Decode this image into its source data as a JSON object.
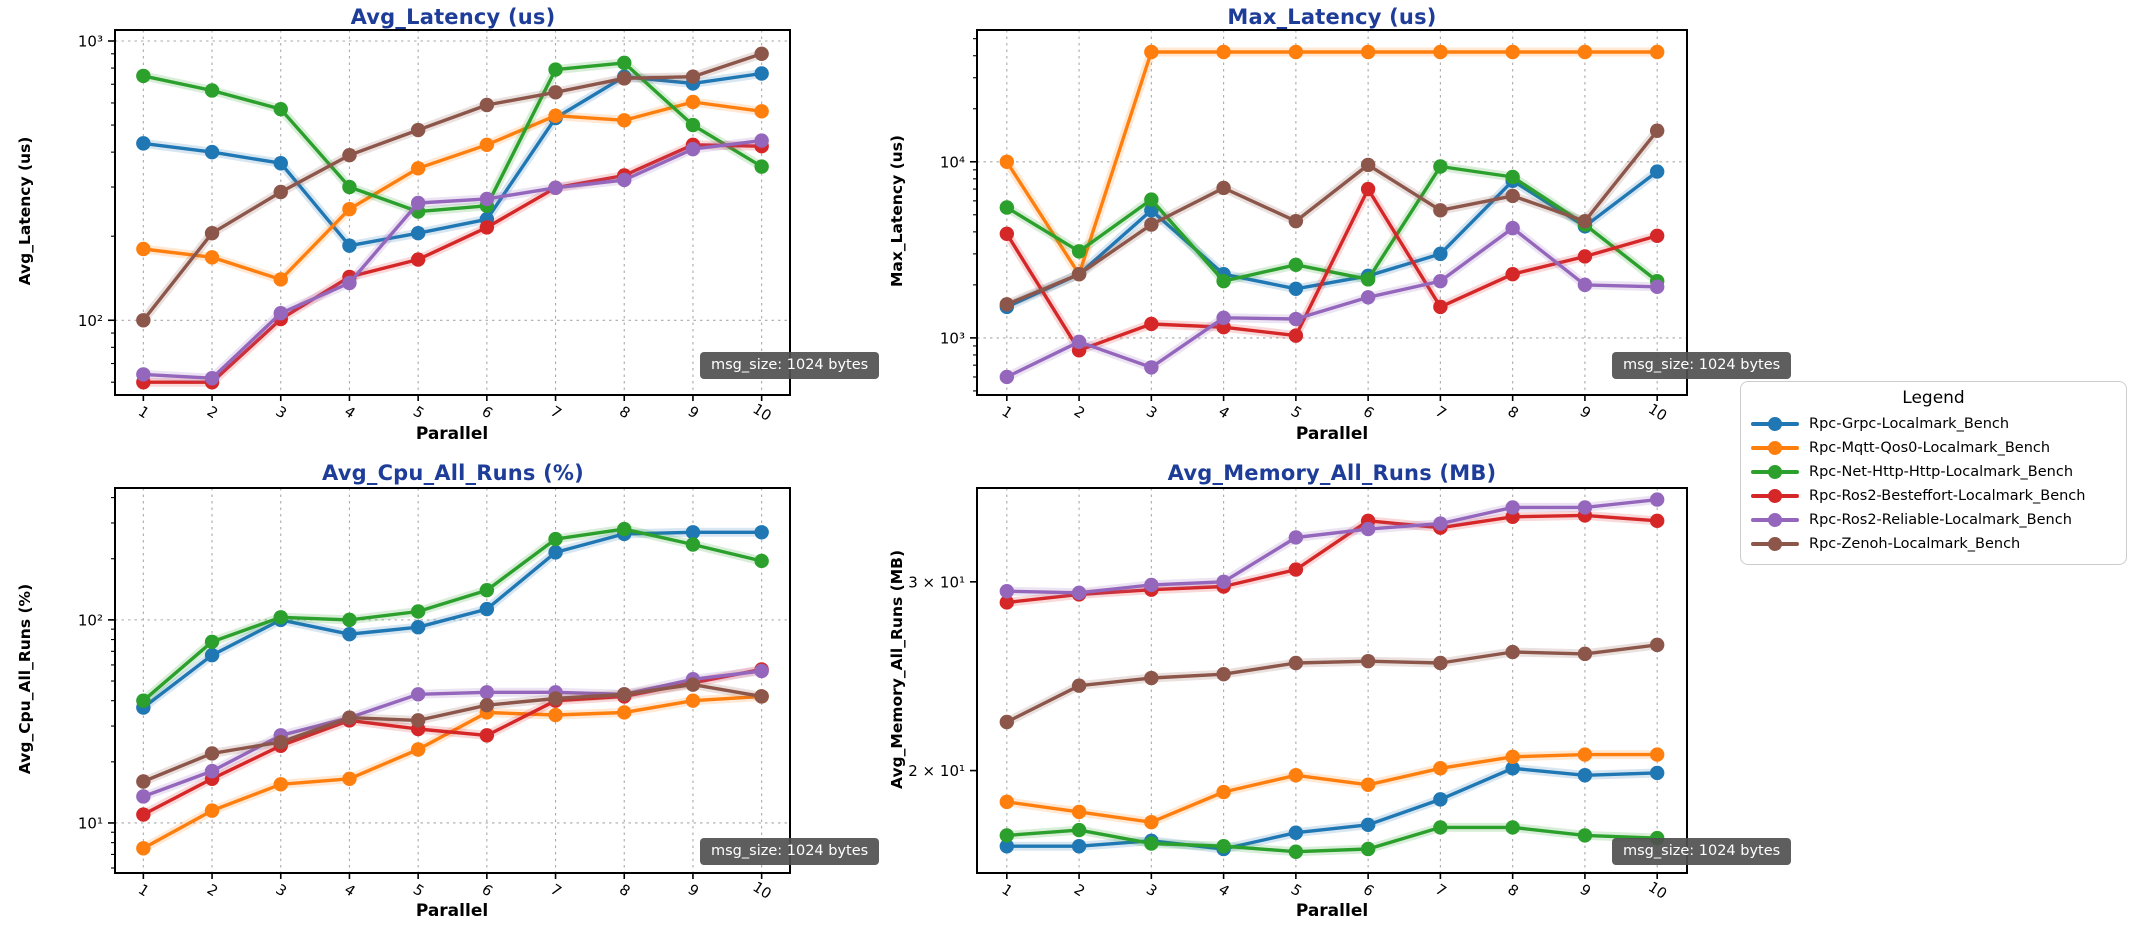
{
  "figure": {
    "background": "#ffffff",
    "title_color": "#1e3d99",
    "grid_color": "#aaaaaa",
    "spine_color": "#000000"
  },
  "annotation": {
    "label": "msg_size: 1024 bytes"
  },
  "legend": {
    "title": "Legend",
    "entries": [
      {
        "label": "Rpc-Grpc-Localmark_Bench",
        "color": "#1f77b4"
      },
      {
        "label": "Rpc-Mqtt-Qos0-Localmark_Bench",
        "color": "#ff7f0e"
      },
      {
        "label": "Rpc-Net-Http-Http-Localmark_Bench",
        "color": "#2ca02c"
      },
      {
        "label": "Rpc-Ros2-Besteffort-Localmark_Bench",
        "color": "#d62728"
      },
      {
        "label": "Rpc-Ros2-Reliable-Localmark_Bench",
        "color": "#9467bd"
      },
      {
        "label": "Rpc-Zenoh-Localmark_Bench",
        "color": "#8c564b"
      }
    ]
  },
  "chart_data": [
    {
      "type": "line",
      "title": "Avg_Latency (us)",
      "xlabel": "Parallel",
      "ylabel": "Avg_Latency (us)",
      "yscale": "log",
      "ylim": [
        54,
        1095
      ],
      "x": [
        1,
        2,
        3,
        4,
        5,
        6,
        7,
        8,
        9,
        10
      ],
      "xticklabels": [
        "1",
        "2",
        "3",
        "4",
        "5",
        "6",
        "7",
        "8",
        "9",
        "10"
      ],
      "yticks": [
        {
          "value": 100,
          "label": "10²",
          "grid": true
        },
        {
          "value": 1000,
          "label": "10³",
          "grid": true
        }
      ],
      "series": [
        {
          "name": "Rpc-Grpc-Localmark_Bench",
          "color": "#1f77b4",
          "values": [
            430,
            400,
            365,
            185,
            205,
            230,
            530,
            745,
            705,
            765
          ]
        },
        {
          "name": "Rpc-Mqtt-Qos0-Localmark_Bench",
          "color": "#ff7f0e",
          "values": [
            180,
            168,
            140,
            250,
            350,
            425,
            540,
            520,
            605,
            560
          ]
        },
        {
          "name": "Rpc-Net-Http-Http-Localmark_Bench",
          "color": "#2ca02c",
          "values": [
            750,
            665,
            570,
            300,
            245,
            257,
            790,
            835,
            500,
            355
          ]
        },
        {
          "name": "Rpc-Ros2-Besteffort-Localmark_Bench",
          "color": "#d62728",
          "values": [
            60,
            60,
            101,
            143,
            165,
            215,
            298,
            330,
            425,
            420
          ]
        },
        {
          "name": "Rpc-Ros2-Reliable-Localmark_Bench",
          "color": "#9467bd",
          "values": [
            64,
            62,
            106,
            136,
            263,
            272,
            298,
            318,
            410,
            440
          ]
        },
        {
          "name": "Rpc-Zenoh-Localmark_Bench",
          "color": "#8c564b",
          "values": [
            100,
            205,
            288,
            390,
            480,
            590,
            655,
            735,
            745,
            900
          ]
        }
      ]
    },
    {
      "type": "line",
      "title": "Max_Latency (us)",
      "xlabel": "Parallel",
      "ylabel": "Max_Latency (us)",
      "yscale": "log",
      "ylim": [
        474,
        56000
      ],
      "x": [
        1,
        2,
        3,
        4,
        5,
        6,
        7,
        8,
        9,
        10
      ],
      "xticklabels": [
        "1",
        "2",
        "3",
        "4",
        "5",
        "6",
        "7",
        "8",
        "9",
        "10"
      ],
      "yticks": [
        {
          "value": 1000,
          "label": "10³",
          "grid": true
        },
        {
          "value": 10000,
          "label": "10⁴",
          "grid": true
        }
      ],
      "series": [
        {
          "name": "Rpc-Grpc-Localmark_Bench",
          "color": "#1f77b4",
          "values": [
            1500,
            2300,
            5300,
            2300,
            1900,
            2250,
            3000,
            7800,
            4300,
            8800
          ]
        },
        {
          "name": "Rpc-Mqtt-Qos0-Localmark_Bench",
          "color": "#ff7f0e",
          "values": [
            10000,
            2300,
            42000,
            42000,
            42000,
            42000,
            42000,
            42000,
            42000,
            42000
          ]
        },
        {
          "name": "Rpc-Net-Http-Http-Localmark_Bench",
          "color": "#2ca02c",
          "values": [
            5500,
            3100,
            6100,
            2100,
            2600,
            2150,
            9400,
            8200,
            4400,
            2100
          ]
        },
        {
          "name": "Rpc-Ros2-Besteffort-Localmark_Bench",
          "color": "#d62728",
          "values": [
            3900,
            850,
            1200,
            1150,
            1030,
            7000,
            1500,
            2300,
            2900,
            3800
          ]
        },
        {
          "name": "Rpc-Ros2-Reliable-Localmark_Bench",
          "color": "#9467bd",
          "values": [
            600,
            950,
            680,
            1300,
            1280,
            1700,
            2100,
            4200,
            2000,
            1950
          ]
        },
        {
          "name": "Rpc-Zenoh-Localmark_Bench",
          "color": "#8c564b",
          "values": [
            1550,
            2300,
            4400,
            7100,
            4600,
            9600,
            5300,
            6400,
            4600,
            15000
          ]
        }
      ]
    },
    {
      "type": "line",
      "title": "Avg_Cpu_All_Runs (%)",
      "xlabel": "Parallel",
      "ylabel": "Avg_Cpu_All_Runs (%)",
      "yscale": "log",
      "ylim": [
        5.67,
        446
      ],
      "x": [
        1,
        2,
        3,
        4,
        5,
        6,
        7,
        8,
        9,
        10
      ],
      "xticklabels": [
        "1",
        "2",
        "3",
        "4",
        "5",
        "6",
        "7",
        "8",
        "9",
        "10"
      ],
      "yticks": [
        {
          "value": 10,
          "label": "10¹",
          "grid": true
        },
        {
          "value": 100,
          "label": "10²",
          "grid": true
        }
      ],
      "series": [
        {
          "name": "Rpc-Grpc-Localmark_Bench",
          "color": "#1f77b4",
          "values": [
            37,
            67,
            100,
            85,
            92,
            113,
            215,
            265,
            270,
            270
          ]
        },
        {
          "name": "Rpc-Mqtt-Qos0-Localmark_Bench",
          "color": "#ff7f0e",
          "values": [
            7.5,
            11.5,
            15.5,
            16.5,
            23,
            35,
            34,
            35,
            40,
            42
          ]
        },
        {
          "name": "Rpc-Net-Http-Http-Localmark_Bench",
          "color": "#2ca02c",
          "values": [
            40,
            78,
            103,
            100,
            110,
            140,
            250,
            280,
            235,
            195
          ]
        },
        {
          "name": "Rpc-Ros2-Besteffort-Localmark_Bench",
          "color": "#d62728",
          "values": [
            11,
            16.5,
            24,
            32,
            29,
            27,
            40,
            42,
            49,
            57
          ]
        },
        {
          "name": "Rpc-Ros2-Reliable-Localmark_Bench",
          "color": "#9467bd",
          "values": [
            13.5,
            18,
            27,
            33,
            43,
            44,
            44,
            43,
            51,
            56
          ]
        },
        {
          "name": "Rpc-Zenoh-Localmark_Bench",
          "color": "#8c564b",
          "values": [
            16,
            22,
            25,
            33,
            32,
            38,
            41,
            43,
            48,
            42
          ]
        }
      ]
    },
    {
      "type": "line",
      "title": "Avg_Memory_All_Runs (MB)",
      "xlabel": "Parallel",
      "ylabel": "Avg_Memory_All_Runs (MB)",
      "yscale": "log",
      "ylim": [
        16.05,
        36.7
      ],
      "x": [
        1,
        2,
        3,
        4,
        5,
        6,
        7,
        8,
        9,
        10
      ],
      "xticklabels": [
        "1",
        "2",
        "3",
        "4",
        "5",
        "6",
        "7",
        "8",
        "9",
        "10"
      ],
      "yticks": [
        {
          "value": 20,
          "label": "2 × 10¹",
          "grid": false
        },
        {
          "value": 30,
          "label": "3 × 10¹",
          "grid": false
        }
      ],
      "series": [
        {
          "name": "Rpc-Grpc-Localmark_Bench",
          "color": "#1f77b4",
          "values": [
            17.0,
            17.0,
            17.2,
            16.9,
            17.5,
            17.8,
            18.8,
            20.1,
            19.8,
            19.9
          ]
        },
        {
          "name": "Rpc-Mqtt-Qos0-Localmark_Bench",
          "color": "#ff7f0e",
          "values": [
            18.7,
            18.3,
            17.9,
            19.1,
            19.8,
            19.4,
            20.1,
            20.6,
            20.7,
            20.7
          ]
        },
        {
          "name": "Rpc-Net-Http-Http-Localmark_Bench",
          "color": "#2ca02c",
          "values": [
            17.4,
            17.6,
            17.1,
            17.0,
            16.8,
            16.9,
            17.7,
            17.7,
            17.4,
            17.3
          ]
        },
        {
          "name": "Rpc-Ros2-Besteffort-Localmark_Bench",
          "color": "#d62728",
          "values": [
            28.7,
            29.2,
            29.5,
            29.7,
            30.8,
            34.2,
            33.7,
            34.5,
            34.6,
            34.2
          ]
        },
        {
          "name": "Rpc-Ros2-Reliable-Localmark_Bench",
          "color": "#9467bd",
          "values": [
            29.4,
            29.3,
            29.8,
            30.0,
            33.0,
            33.6,
            34.0,
            35.2,
            35.2,
            35.8
          ]
        },
        {
          "name": "Rpc-Zenoh-Localmark_Bench",
          "color": "#8c564b",
          "values": [
            22.2,
            24.0,
            24.4,
            24.6,
            25.2,
            25.3,
            25.2,
            25.8,
            25.7,
            26.2
          ]
        }
      ]
    }
  ]
}
